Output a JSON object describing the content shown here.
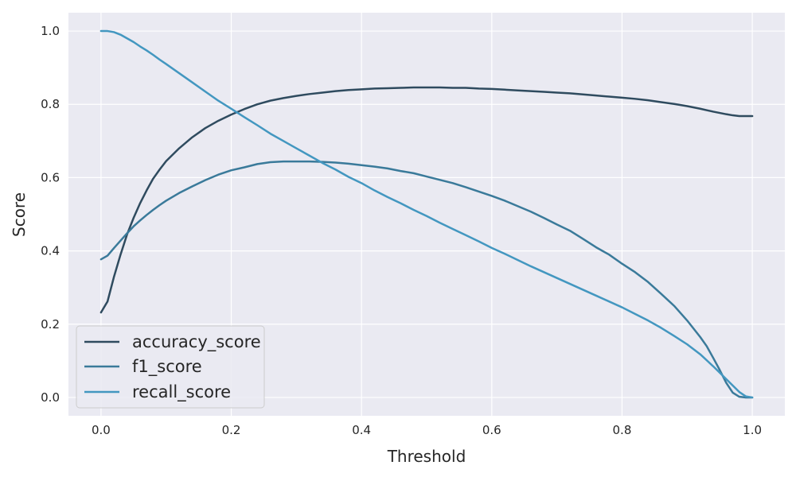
{
  "chart_data": {
    "type": "line",
    "title": "",
    "xlabel": "Threshold",
    "ylabel": "Score",
    "xlim": [
      -0.05,
      1.05
    ],
    "ylim": [
      -0.05,
      1.05
    ],
    "xticks": [
      0.0,
      0.2,
      0.4,
      0.6,
      0.8,
      1.0
    ],
    "xtick_labels": [
      "0.0",
      "0.2",
      "0.4",
      "0.6",
      "0.8",
      "1.0"
    ],
    "yticks": [
      0.0,
      0.2,
      0.4,
      0.6,
      0.8,
      1.0
    ],
    "ytick_labels": [
      "0.0",
      "0.2",
      "0.4",
      "0.6",
      "0.8",
      "1.0"
    ],
    "grid": true,
    "legend_position": "bottom-left",
    "background_color": "#eaeaf2",
    "grid_color": "#ffffff",
    "series": [
      {
        "name": "accuracy_score",
        "color": "#2f4b5f",
        "x": [
          0.0,
          0.01,
          0.02,
          0.03,
          0.04,
          0.05,
          0.06,
          0.07,
          0.08,
          0.09,
          0.1,
          0.12,
          0.14,
          0.16,
          0.18,
          0.2,
          0.22,
          0.24,
          0.26,
          0.28,
          0.3,
          0.32,
          0.34,
          0.36,
          0.38,
          0.4,
          0.42,
          0.44,
          0.46,
          0.48,
          0.5,
          0.52,
          0.54,
          0.56,
          0.58,
          0.6,
          0.62,
          0.64,
          0.66,
          0.68,
          0.7,
          0.72,
          0.74,
          0.76,
          0.78,
          0.8,
          0.82,
          0.84,
          0.86,
          0.88,
          0.9,
          0.92,
          0.94,
          0.96,
          0.97,
          0.98,
          0.99,
          1.0
        ],
        "y": [
          0.232,
          0.262,
          0.33,
          0.39,
          0.445,
          0.49,
          0.53,
          0.565,
          0.597,
          0.622,
          0.645,
          0.68,
          0.71,
          0.735,
          0.755,
          0.772,
          0.787,
          0.8,
          0.81,
          0.817,
          0.823,
          0.828,
          0.832,
          0.836,
          0.839,
          0.841,
          0.843,
          0.844,
          0.845,
          0.846,
          0.846,
          0.846,
          0.845,
          0.845,
          0.843,
          0.842,
          0.84,
          0.838,
          0.836,
          0.834,
          0.832,
          0.83,
          0.827,
          0.824,
          0.821,
          0.818,
          0.815,
          0.811,
          0.806,
          0.801,
          0.795,
          0.788,
          0.78,
          0.773,
          0.77,
          0.768,
          0.768,
          0.768
        ]
      },
      {
        "name": "f1_score",
        "color": "#3a7a9a",
        "x": [
          0.0,
          0.01,
          0.02,
          0.03,
          0.04,
          0.05,
          0.06,
          0.07,
          0.08,
          0.09,
          0.1,
          0.12,
          0.14,
          0.16,
          0.18,
          0.2,
          0.22,
          0.24,
          0.26,
          0.28,
          0.3,
          0.32,
          0.34,
          0.36,
          0.38,
          0.4,
          0.42,
          0.44,
          0.46,
          0.48,
          0.5,
          0.52,
          0.54,
          0.56,
          0.58,
          0.6,
          0.62,
          0.64,
          0.66,
          0.68,
          0.7,
          0.72,
          0.74,
          0.76,
          0.78,
          0.8,
          0.82,
          0.84,
          0.86,
          0.88,
          0.9,
          0.92,
          0.93,
          0.94,
          0.95,
          0.96,
          0.97,
          0.98,
          0.99,
          1.0
        ],
        "y": [
          0.377,
          0.387,
          0.408,
          0.428,
          0.448,
          0.467,
          0.483,
          0.498,
          0.512,
          0.525,
          0.537,
          0.558,
          0.576,
          0.593,
          0.608,
          0.62,
          0.628,
          0.637,
          0.642,
          0.644,
          0.644,
          0.644,
          0.643,
          0.641,
          0.638,
          0.634,
          0.63,
          0.625,
          0.618,
          0.612,
          0.603,
          0.594,
          0.585,
          0.574,
          0.562,
          0.55,
          0.537,
          0.522,
          0.507,
          0.49,
          0.472,
          0.455,
          0.433,
          0.41,
          0.39,
          0.365,
          0.342,
          0.315,
          0.283,
          0.25,
          0.21,
          0.165,
          0.14,
          0.108,
          0.075,
          0.04,
          0.013,
          0.002,
          0.0,
          0.0
        ]
      },
      {
        "name": "recall_score",
        "color": "#4397c0",
        "x": [
          0.0,
          0.01,
          0.02,
          0.03,
          0.04,
          0.05,
          0.06,
          0.07,
          0.08,
          0.09,
          0.1,
          0.12,
          0.14,
          0.16,
          0.18,
          0.2,
          0.22,
          0.24,
          0.26,
          0.28,
          0.3,
          0.32,
          0.34,
          0.36,
          0.38,
          0.4,
          0.42,
          0.44,
          0.46,
          0.48,
          0.5,
          0.52,
          0.54,
          0.56,
          0.58,
          0.6,
          0.62,
          0.64,
          0.66,
          0.68,
          0.7,
          0.72,
          0.74,
          0.76,
          0.78,
          0.8,
          0.82,
          0.84,
          0.86,
          0.88,
          0.9,
          0.92,
          0.94,
          0.96,
          0.98,
          0.99,
          1.0
        ],
        "y": [
          1.0,
          1.0,
          0.997,
          0.99,
          0.98,
          0.97,
          0.958,
          0.947,
          0.935,
          0.922,
          0.91,
          0.885,
          0.86,
          0.835,
          0.81,
          0.788,
          0.765,
          0.743,
          0.72,
          0.7,
          0.68,
          0.66,
          0.64,
          0.622,
          0.602,
          0.585,
          0.565,
          0.547,
          0.53,
          0.512,
          0.495,
          0.477,
          0.46,
          0.443,
          0.426,
          0.408,
          0.392,
          0.375,
          0.358,
          0.342,
          0.326,
          0.31,
          0.294,
          0.278,
          0.262,
          0.246,
          0.228,
          0.21,
          0.19,
          0.168,
          0.145,
          0.118,
          0.085,
          0.05,
          0.015,
          0.003,
          0.0
        ]
      }
    ]
  }
}
